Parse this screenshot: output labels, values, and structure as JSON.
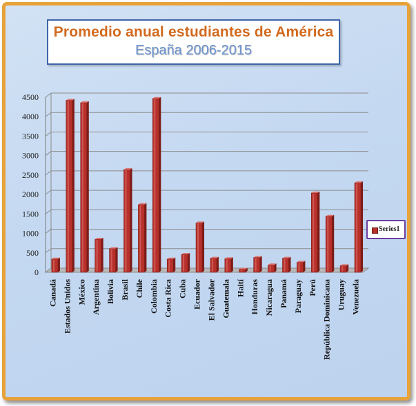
{
  "colors": {
    "bar_fill": "#b8302b",
    "bar_dark": "#7d1c18",
    "bar_light": "#d9746e",
    "title": "#d2691e",
    "subtitle": "#6b93d1",
    "frame_border": "#e8a23a",
    "legend_border": "#6b3fa0"
  },
  "chart_data": {
    "type": "bar",
    "title": "Promedio anual estudiantes de América",
    "subtitle": "España 2006-2015",
    "categories": [
      "Canadá",
      "Estados Unidos",
      "México",
      "Argentina",
      "Bolivia",
      "Brasil",
      "Chile",
      "Colombia",
      "Costa Rica",
      "Cuba",
      "Ecuador",
      "El Salvador",
      "Guatemala",
      "Haití",
      "Honduras",
      "Nicaragua",
      "Panamá",
      "Paraguay",
      "Perú",
      "República Dominicana",
      "Uruguay",
      "Venezuela"
    ],
    "series": [
      {
        "name": "Series1",
        "values": [
          340,
          4420,
          4360,
          850,
          610,
          2640,
          1740,
          4470,
          340,
          460,
          1270,
          360,
          350,
          80,
          380,
          190,
          360,
          260,
          2040,
          1440,
          170,
          2300
        ]
      }
    ],
    "ylim": [
      0,
      4500
    ],
    "yticks": [
      0,
      500,
      1000,
      1500,
      2000,
      2500,
      3000,
      3500,
      4000,
      4500
    ],
    "grid": true,
    "legend_position": "right"
  }
}
